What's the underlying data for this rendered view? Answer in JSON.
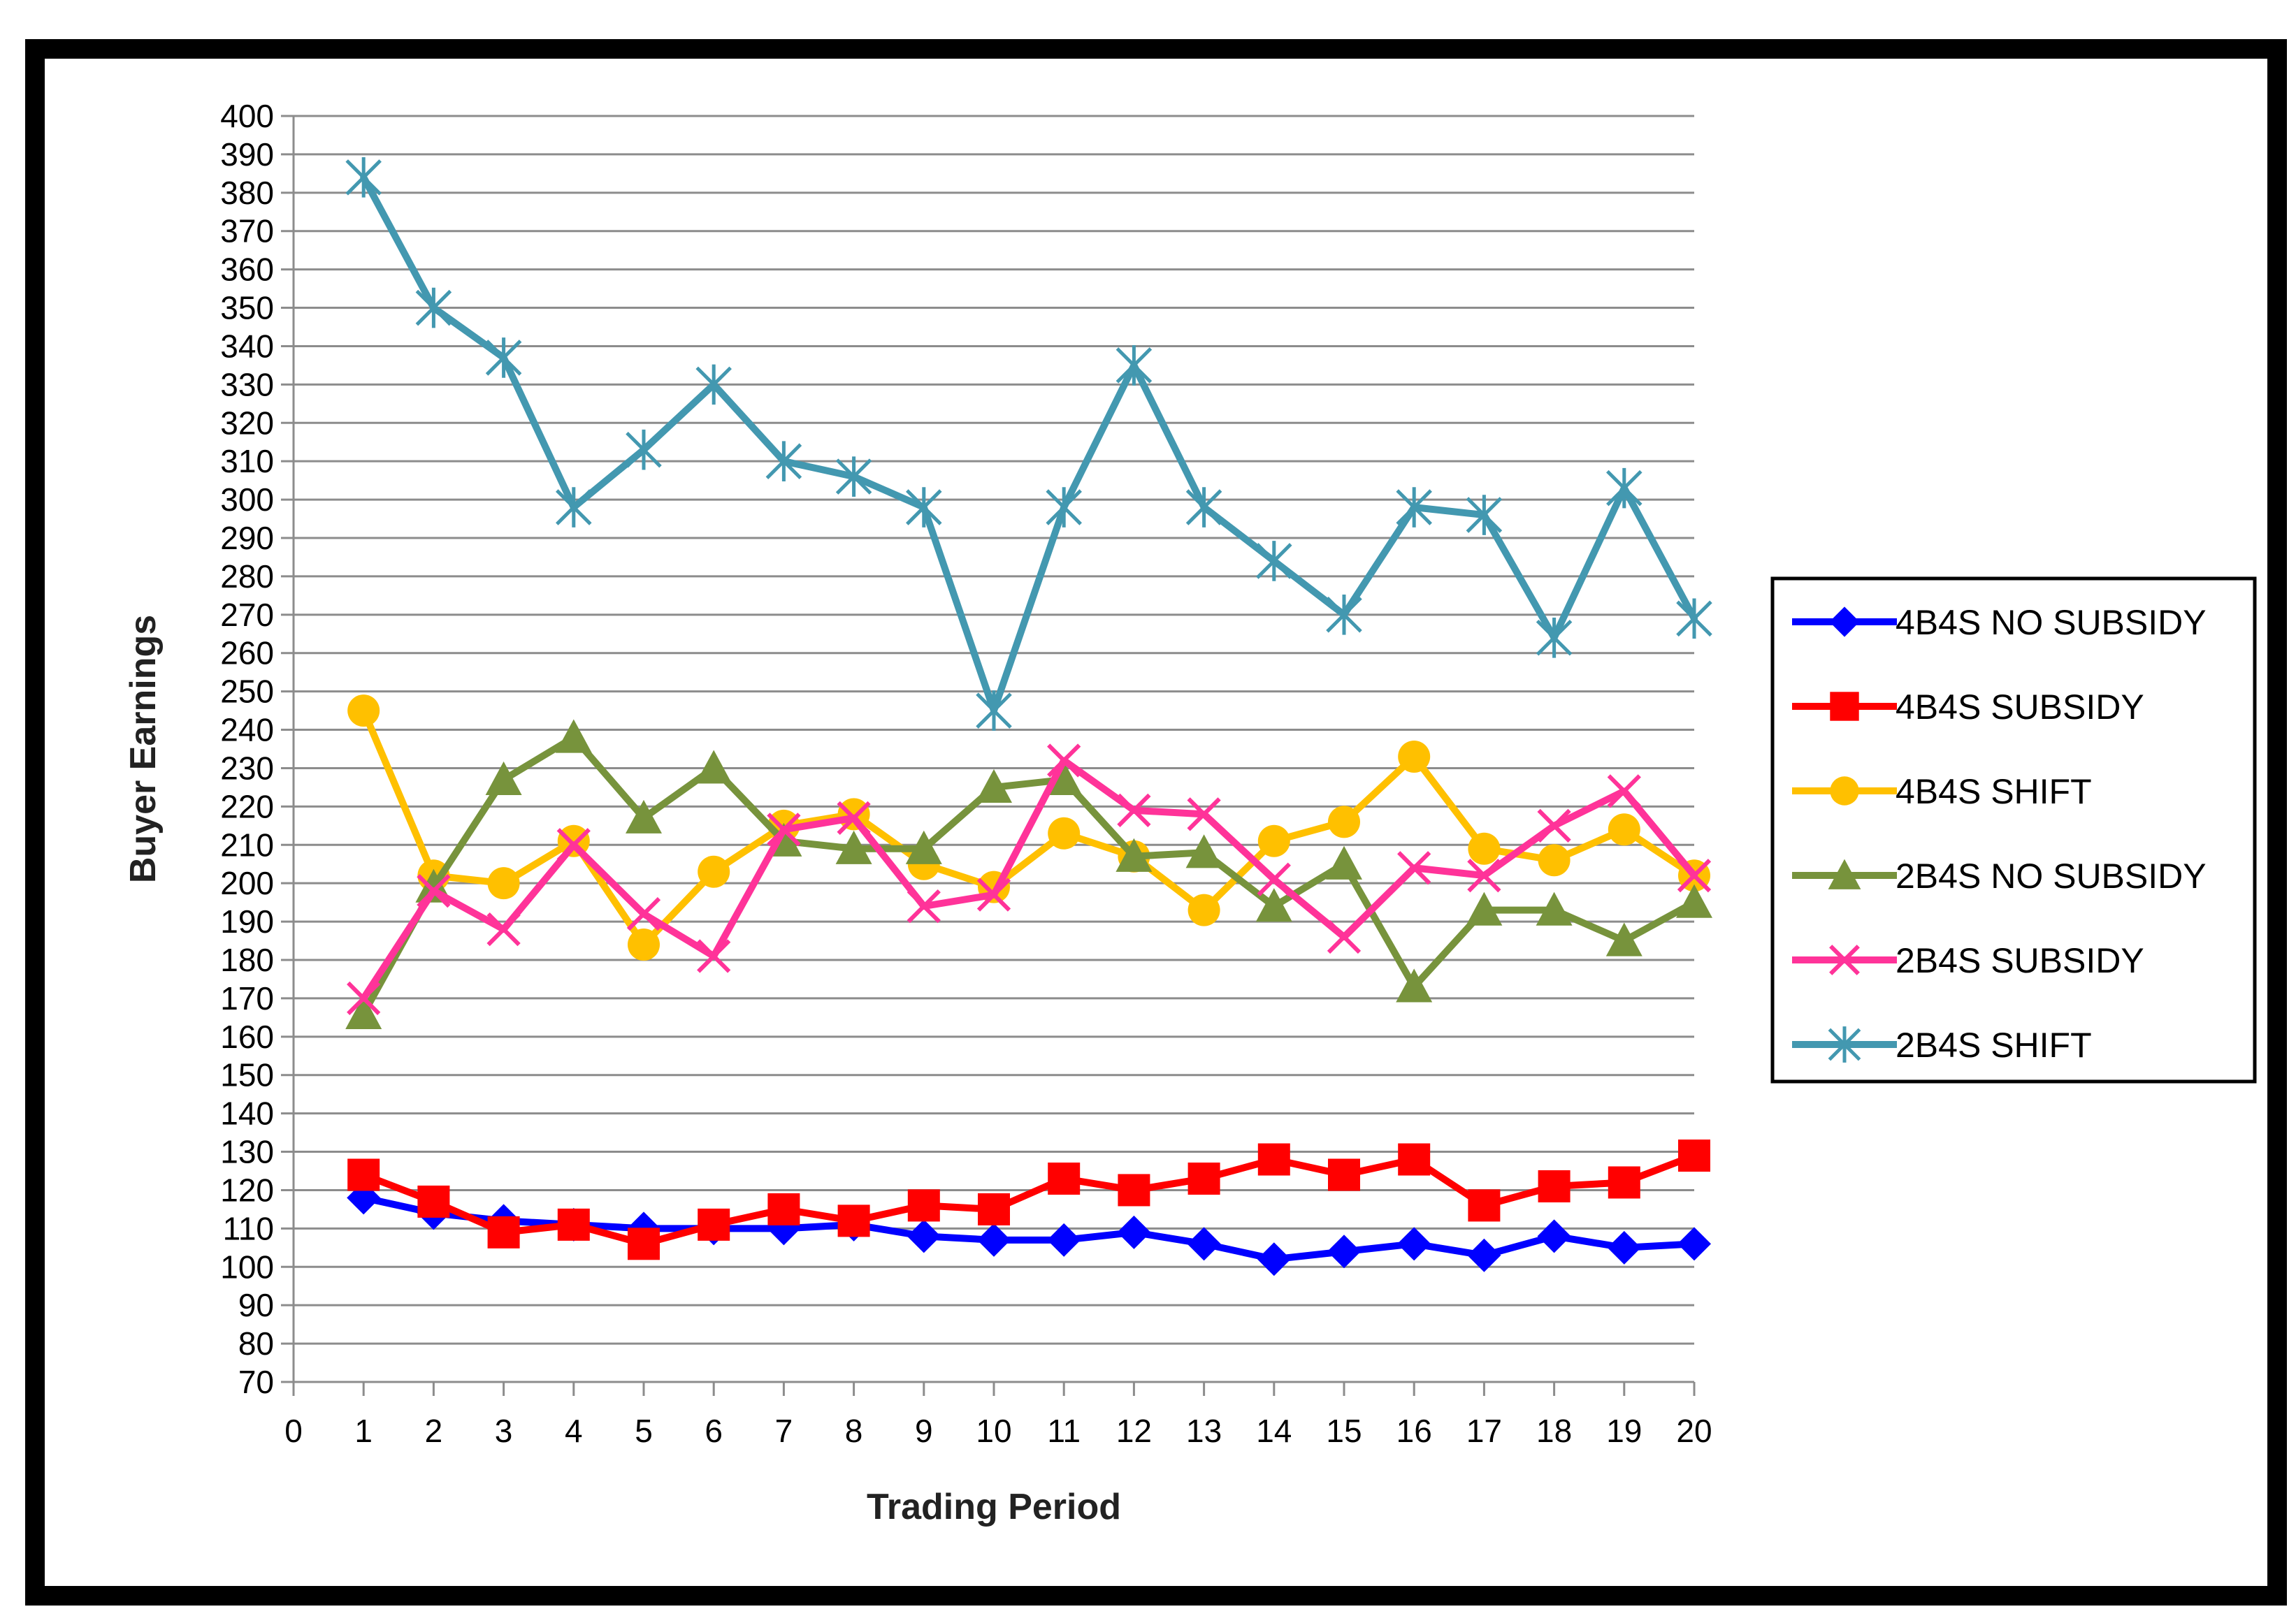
{
  "chart_data": {
    "type": "line",
    "title": "",
    "xlabel": "Trading Period",
    "ylabel": "Buyer Earnings",
    "xlim": [
      0,
      20
    ],
    "ylim": [
      70,
      400
    ],
    "x_step": 1,
    "y_step": 10,
    "grid": "horizontal",
    "legend_position": "right",
    "x": [
      1,
      2,
      3,
      4,
      5,
      6,
      7,
      8,
      9,
      10,
      11,
      12,
      13,
      14,
      15,
      16,
      17,
      18,
      19,
      20
    ],
    "series": [
      {
        "name": "4B4S NO SUBSIDY",
        "color": "#0000ff",
        "marker": "diamond",
        "values": [
          118,
          114,
          112,
          111,
          110,
          110,
          110,
          111,
          108,
          107,
          107,
          109,
          106,
          102,
          104,
          106,
          103,
          108,
          105,
          106
        ]
      },
      {
        "name": "4B4S SUBSIDY",
        "color": "#ff0000",
        "marker": "square",
        "values": [
          124,
          117,
          109,
          111,
          106,
          111,
          115,
          112,
          116,
          115,
          123,
          120,
          123,
          128,
          124,
          128,
          116,
          121,
          122,
          129
        ]
      },
      {
        "name": "4B4S SHIFT",
        "color": "#ffc000",
        "marker": "circle",
        "values": [
          245,
          202,
          200,
          211,
          184,
          203,
          215,
          218,
          205,
          199,
          213,
          207,
          193,
          211,
          216,
          233,
          209,
          206,
          214,
          202
        ]
      },
      {
        "name": "2B4S NO SUBSIDY",
        "color": "#77933c",
        "marker": "triangle",
        "values": [
          166,
          199,
          227,
          238,
          217,
          230,
          211,
          209,
          209,
          225,
          227,
          207,
          208,
          194,
          205,
          173,
          193,
          193,
          185,
          195
        ]
      },
      {
        "name": "2B4S SUBSIDY",
        "color": "#ff3399",
        "marker": "x",
        "values": [
          170,
          198,
          188,
          210,
          192,
          181,
          214,
          217,
          194,
          197,
          232,
          219,
          218,
          201,
          186,
          204,
          202,
          215,
          224,
          202
        ]
      },
      {
        "name": "2B4S SHIFT",
        "color": "#4398b0",
        "marker": "star",
        "values": [
          384,
          350,
          337,
          298,
          313,
          330,
          310,
          306,
          298,
          245,
          298,
          335,
          298,
          284,
          270,
          298,
          296,
          264,
          303,
          269
        ]
      }
    ]
  }
}
